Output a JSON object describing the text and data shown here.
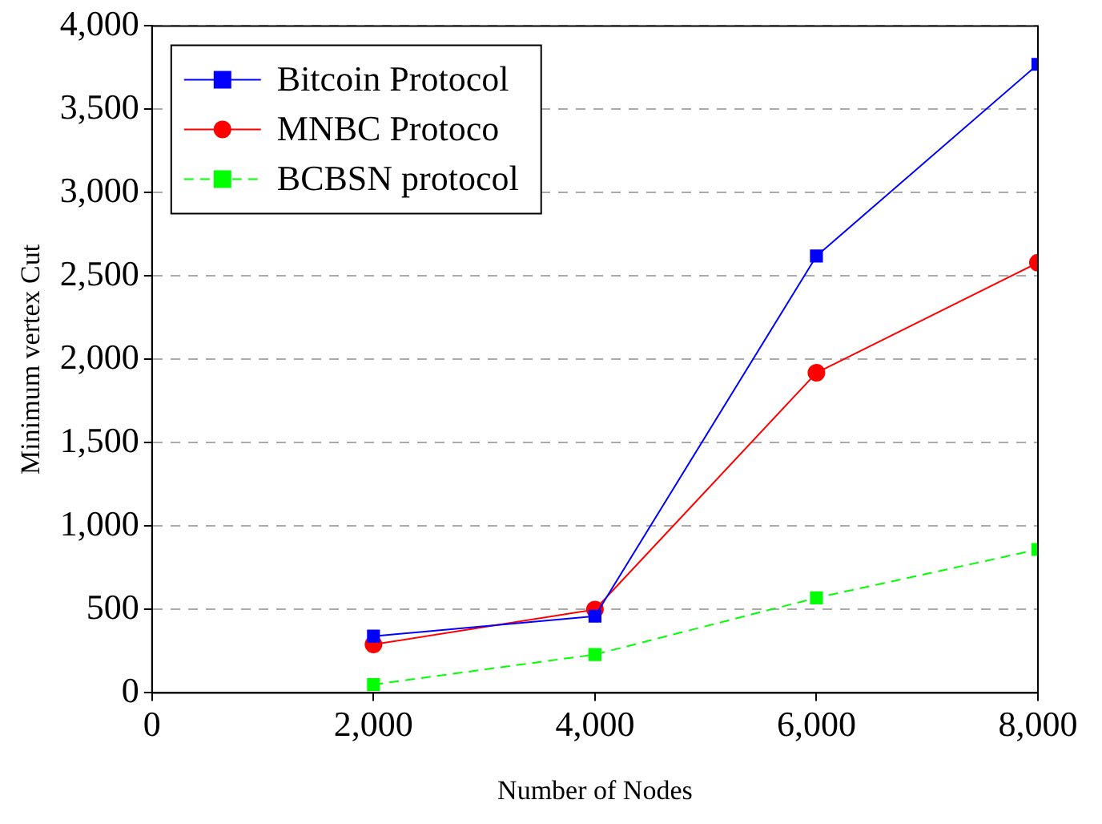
{
  "chart_data": {
    "type": "line",
    "xlabel": "Number of Nodes",
    "ylabel": "Minimum vertex Cut",
    "x": [
      2000,
      4000,
      6000,
      8000
    ],
    "series": [
      {
        "name": "Bitcoin Protocol",
        "color": "#0000ff",
        "values": [
          340,
          460,
          2620,
          3770
        ],
        "marker": "square",
        "line_style": "solid"
      },
      {
        "name": "MNBC Protoco",
        "color": "#ff0000",
        "values": [
          290,
          500,
          1920,
          2580
        ],
        "marker": "circle",
        "line_style": "solid"
      },
      {
        "name": "BCBSN protocol",
        "color": "#00ff00",
        "values": [
          50,
          230,
          570,
          860
        ],
        "marker": "square",
        "line_style": "dashed"
      }
    ],
    "xlim": [
      0,
      8000
    ],
    "xticks": [
      0,
      {
        "value": 2000,
        "label": "2,000"
      },
      {
        "value": 4000,
        "label": "4,000"
      },
      {
        "value": 6000,
        "label": "6,000"
      },
      {
        "value": 8000,
        "label": "8,000"
      }
    ],
    "ylim": [
      0,
      4000
    ],
    "yticks": [
      0,
      500,
      {
        "value": 1000,
        "label": "1,000"
      },
      {
        "value": 1500,
        "label": "1,500"
      },
      {
        "value": 2000,
        "label": "2,000"
      },
      {
        "value": 2500,
        "label": "2,500"
      },
      {
        "value": 3000,
        "label": "3,000"
      },
      {
        "value": 3500,
        "label": "3,500"
      },
      {
        "value": 4000,
        "label": "4,000"
      }
    ],
    "grid": "y",
    "legend": "top left"
  }
}
